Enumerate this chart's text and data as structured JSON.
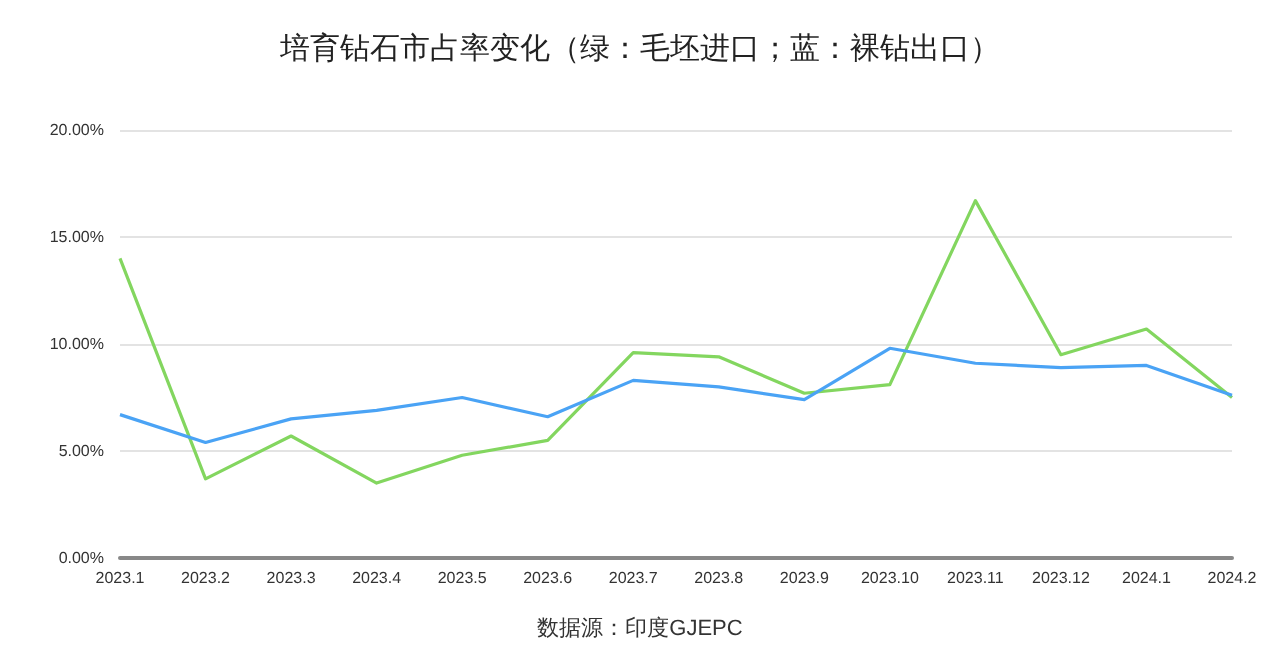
{
  "chart_data": {
    "type": "line",
    "title": "培育钻石市占率变化（绿：毛坯进口；蓝：裸钻出口）",
    "categories": [
      "2023.1",
      "2023.2",
      "2023.3",
      "2023.4",
      "2023.5",
      "2023.6",
      "2023.7",
      "2023.8",
      "2023.9",
      "2023.10",
      "2023.11",
      "2023.12",
      "2024.1",
      "2024.2"
    ],
    "series": [
      {
        "color": "#83d65f",
        "values": [
          14.0,
          3.7,
          5.7,
          3.5,
          4.8,
          5.5,
          9.6,
          9.4,
          7.7,
          8.1,
          16.7,
          9.5,
          10.7,
          7.5
        ]
      },
      {
        "color": "#4aa3f5",
        "values": [
          6.7,
          5.4,
          6.5,
          6.9,
          7.5,
          6.6,
          8.3,
          8.0,
          7.4,
          9.8,
          9.1,
          8.9,
          9.0,
          7.6
        ]
      }
    ],
    "ylim": [
      0,
      20
    ],
    "yticks": [
      {
        "value": 0,
        "label": "0.00%"
      },
      {
        "value": 5,
        "label": "5.00%"
      },
      {
        "value": 10,
        "label": "10.00%"
      },
      {
        "value": 15,
        "label": "15.00%"
      },
      {
        "value": 20,
        "label": "20.00%"
      }
    ],
    "grid": "y",
    "marker": "none",
    "line_style": "solid",
    "annotations": [
      "数据源：印度GJEPC"
    ]
  }
}
